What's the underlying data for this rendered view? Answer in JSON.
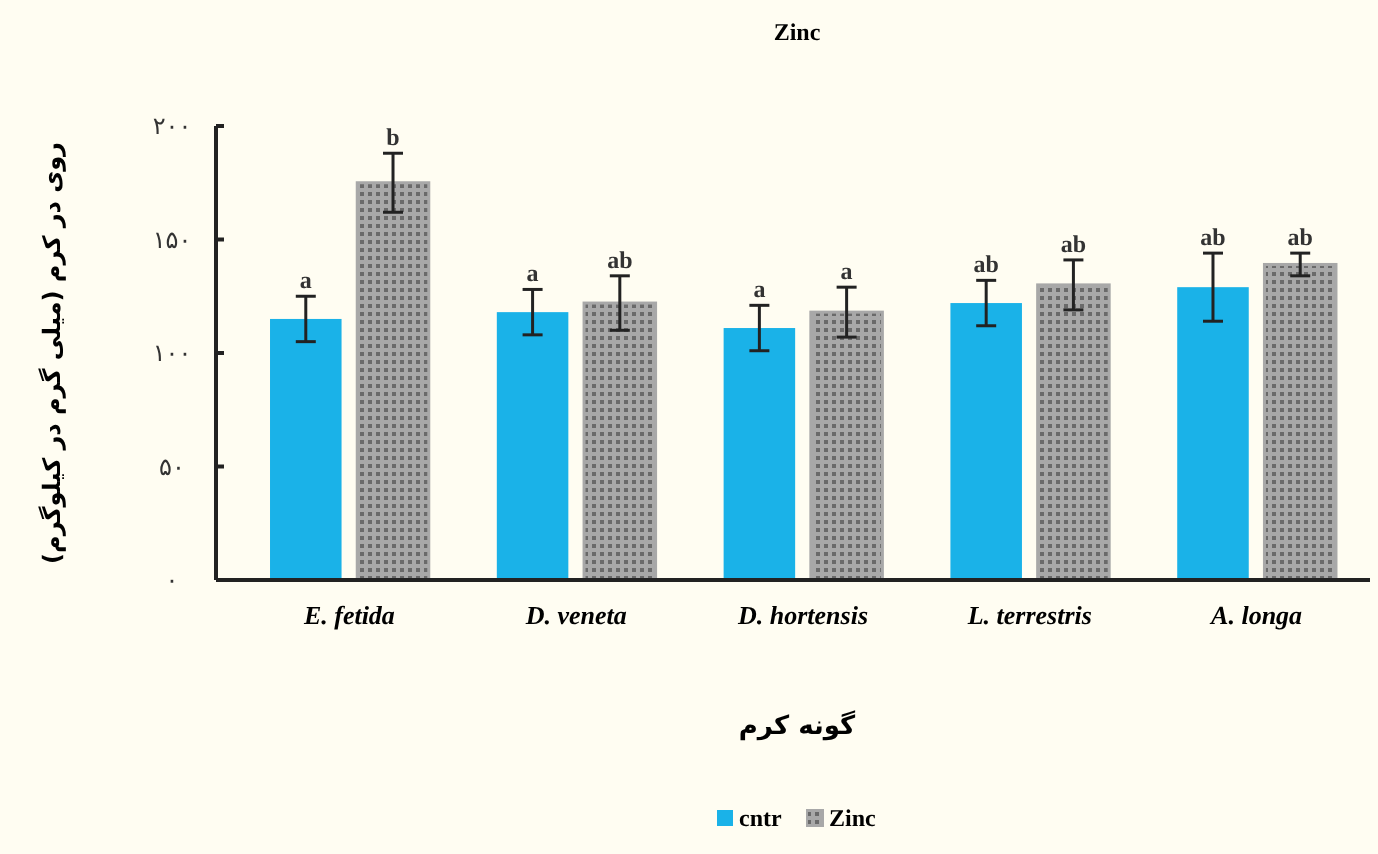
{
  "chart_data": {
    "type": "bar",
    "title": "Zinc",
    "xlabel": "گونه کرم",
    "ylabel": "روی در کرم (میلی گرم در کیلوگرم)",
    "categories": [
      "E. fetida",
      "D. veneta",
      "D. hortensis",
      "L. terrestris",
      "A. longa"
    ],
    "series": [
      {
        "name": "cntr",
        "color": "#1ab2e8",
        "values": [
          115,
          118,
          111,
          122,
          129
        ],
        "errors": [
          10,
          10,
          10,
          10,
          15
        ]
      },
      {
        "name": "Zinc",
        "color": "#a8a8a8",
        "values": [
          175,
          122,
          118,
          130,
          139
        ],
        "errors": [
          13,
          12,
          11,
          11,
          5
        ]
      }
    ],
    "ylim": [
      0,
      200
    ],
    "yticks": [
      {
        "value": 0,
        "label": "۰"
      },
      {
        "value": 50,
        "label": "۵۰"
      },
      {
        "value": 100,
        "label": "۱۰۰"
      },
      {
        "value": 150,
        "label": "۱۵۰"
      },
      {
        "value": 200,
        "label": "۲۰۰"
      }
    ],
    "annotations": [
      {
        "text": "a",
        "x": "E. fetida",
        "y": 115
      },
      {
        "text": "b",
        "x": "E. fetida",
        "y": 175
      },
      {
        "text": "a",
        "x": "D. veneta",
        "y": 118
      },
      {
        "text": "ab",
        "x": "D. veneta",
        "y": 122
      },
      {
        "text": "a",
        "x": "D. hortensis",
        "y": 111
      },
      {
        "text": "a",
        "x": "D. hortensis",
        "y": 118
      },
      {
        "text": "ab",
        "x": "L. terrestris",
        "y": 122
      },
      {
        "text": "ab",
        "x": "L. terrestris",
        "y": 130
      },
      {
        "text": "ab",
        "x": "A. longa",
        "y": 129
      },
      {
        "text": "ab",
        "x": "A. longa",
        "y": 139
      }
    ],
    "legend": "bottom"
  }
}
